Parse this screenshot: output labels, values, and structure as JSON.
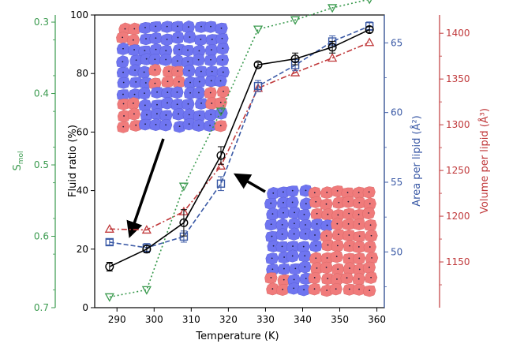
{
  "chart_data": {
    "type": "line",
    "xlabel": "Temperature (K)",
    "x_ticks": [
      290,
      300,
      310,
      320,
      330,
      340,
      350,
      360
    ],
    "xlim": [
      284,
      362
    ],
    "axes": {
      "fluid": {
        "label": "Fluid ratio (%)",
        "lim": [
          0,
          100
        ],
        "ticks": [
          0,
          20,
          40,
          60,
          80,
          100
        ],
        "color": "#000000"
      },
      "smol": {
        "label_main": "S",
        "label_sub": "mol",
        "lim": [
          0.7,
          0.29
        ],
        "ticks": [
          0.3,
          0.4,
          0.5,
          0.6,
          0.7
        ],
        "color": "#3a9a4e"
      },
      "area": {
        "label": "Area per lipid (Å²)",
        "lim": [
          46.0,
          67.0
        ],
        "ticks": [
          50,
          55,
          60,
          65
        ],
        "color": "#3b5aa6"
      },
      "volume": {
        "label": "Volume per lipid (Å³)",
        "lim": [
          1100,
          1420
        ],
        "ticks": [
          1150,
          1200,
          1250,
          1300,
          1350,
          1400
        ],
        "color": "#c0393b"
      }
    },
    "series": [
      {
        "key": "fluid",
        "axis": "fluid",
        "marker": "circle",
        "dash": "",
        "color": "#000000",
        "x": [
          288,
          298,
          308,
          318,
          328,
          338,
          348,
          358
        ],
        "y": [
          14,
          20,
          29,
          52,
          83,
          85,
          89,
          95
        ],
        "err": [
          1.5,
          1.2,
          4.5,
          3,
          0.8,
          2,
          2,
          1
        ]
      },
      {
        "key": "smol",
        "axis": "smol",
        "marker": "triangle-down",
        "dash": "2,3",
        "color": "#3a9a4e",
        "x": [
          288,
          298,
          308,
          318,
          328,
          338,
          348,
          358
        ],
        "y": [
          0.685,
          0.675,
          0.53,
          0.425,
          0.31,
          0.297,
          0.28,
          0.268
        ]
      },
      {
        "key": "area",
        "axis": "area",
        "marker": "square",
        "dash": "6,3",
        "color": "#3b5aa6",
        "x": [
          288,
          298,
          308,
          318,
          328,
          338,
          348,
          358
        ],
        "y": [
          50.7,
          50.3,
          51.1,
          54.9,
          61.9,
          63.4,
          65.1,
          66.2
        ],
        "err": [
          0.2,
          0.3,
          0.4,
          0.5,
          0.4,
          0.4,
          0.4,
          0.3
        ]
      },
      {
        "key": "volume",
        "axis": "volume",
        "marker": "triangle-up",
        "dash": "7,3,2,3",
        "color": "#c0393b",
        "x": [
          288,
          298,
          308,
          318,
          328,
          338,
          348,
          358
        ],
        "y": [
          1186,
          1185,
          1205,
          1255,
          1340,
          1357,
          1373,
          1390
        ]
      }
    ]
  }
}
